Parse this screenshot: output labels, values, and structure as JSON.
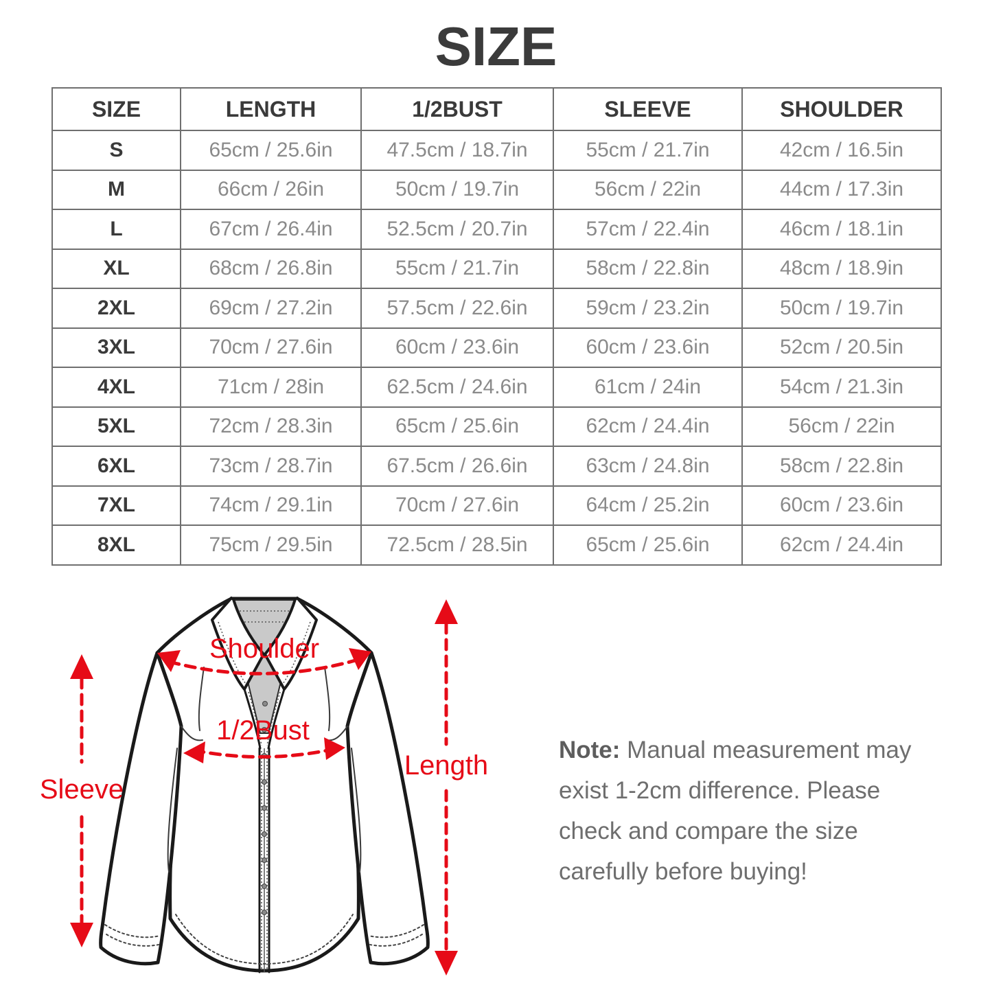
{
  "title": "SIZE",
  "chart_data": {
    "type": "table",
    "title": "SIZE",
    "columns": [
      "SIZE",
      "LENGTH",
      "1/2BUST",
      "SLEEVE",
      "SHOULDER"
    ],
    "rows": [
      [
        "S",
        "65cm / 25.6in",
        "47.5cm / 18.7in",
        "55cm / 21.7in",
        "42cm / 16.5in"
      ],
      [
        "M",
        "66cm / 26in",
        "50cm / 19.7in",
        "56cm / 22in",
        "44cm / 17.3in"
      ],
      [
        "L",
        "67cm / 26.4in",
        "52.5cm / 20.7in",
        "57cm / 22.4in",
        "46cm / 18.1in"
      ],
      [
        "XL",
        "68cm / 26.8in",
        "55cm / 21.7in",
        "58cm / 22.8in",
        "48cm / 18.9in"
      ],
      [
        "2XL",
        "69cm / 27.2in",
        "57.5cm / 22.6in",
        "59cm / 23.2in",
        "50cm / 19.7in"
      ],
      [
        "3XL",
        "70cm / 27.6in",
        "60cm / 23.6in",
        "60cm / 23.6in",
        "52cm / 20.5in"
      ],
      [
        "4XL",
        "71cm / 28in",
        "62.5cm / 24.6in",
        "61cm / 24in",
        "54cm / 21.3in"
      ],
      [
        "5XL",
        "72cm / 28.3in",
        "65cm / 25.6in",
        "62cm / 24.4in",
        "56cm / 22in"
      ],
      [
        "6XL",
        "73cm / 28.7in",
        "67.5cm / 26.6in",
        "63cm / 24.8in",
        "58cm / 22.8in"
      ],
      [
        "7XL",
        "74cm / 29.1in",
        "70cm / 27.6in",
        "64cm / 25.2in",
        "60cm / 23.6in"
      ],
      [
        "8XL",
        "75cm / 29.5in",
        "72.5cm / 28.5in",
        "65cm / 25.6in",
        "62cm / 24.4in"
      ]
    ]
  },
  "diagram": {
    "labels": {
      "shoulder": "Shoulder",
      "half_bust": "1/2Bust",
      "sleeve": "Sleeve",
      "length": "Length"
    },
    "arrow_color": "#e60b17",
    "line_color": "#1a1a1a",
    "collar_fill": "#c9c9c9"
  },
  "note": {
    "prefix": "Note:",
    "line1": " Manual measurement may",
    "line2": "exist 1-2cm difference. Please",
    "line3": "check and compare the size",
    "line4": "carefully before buying!"
  }
}
